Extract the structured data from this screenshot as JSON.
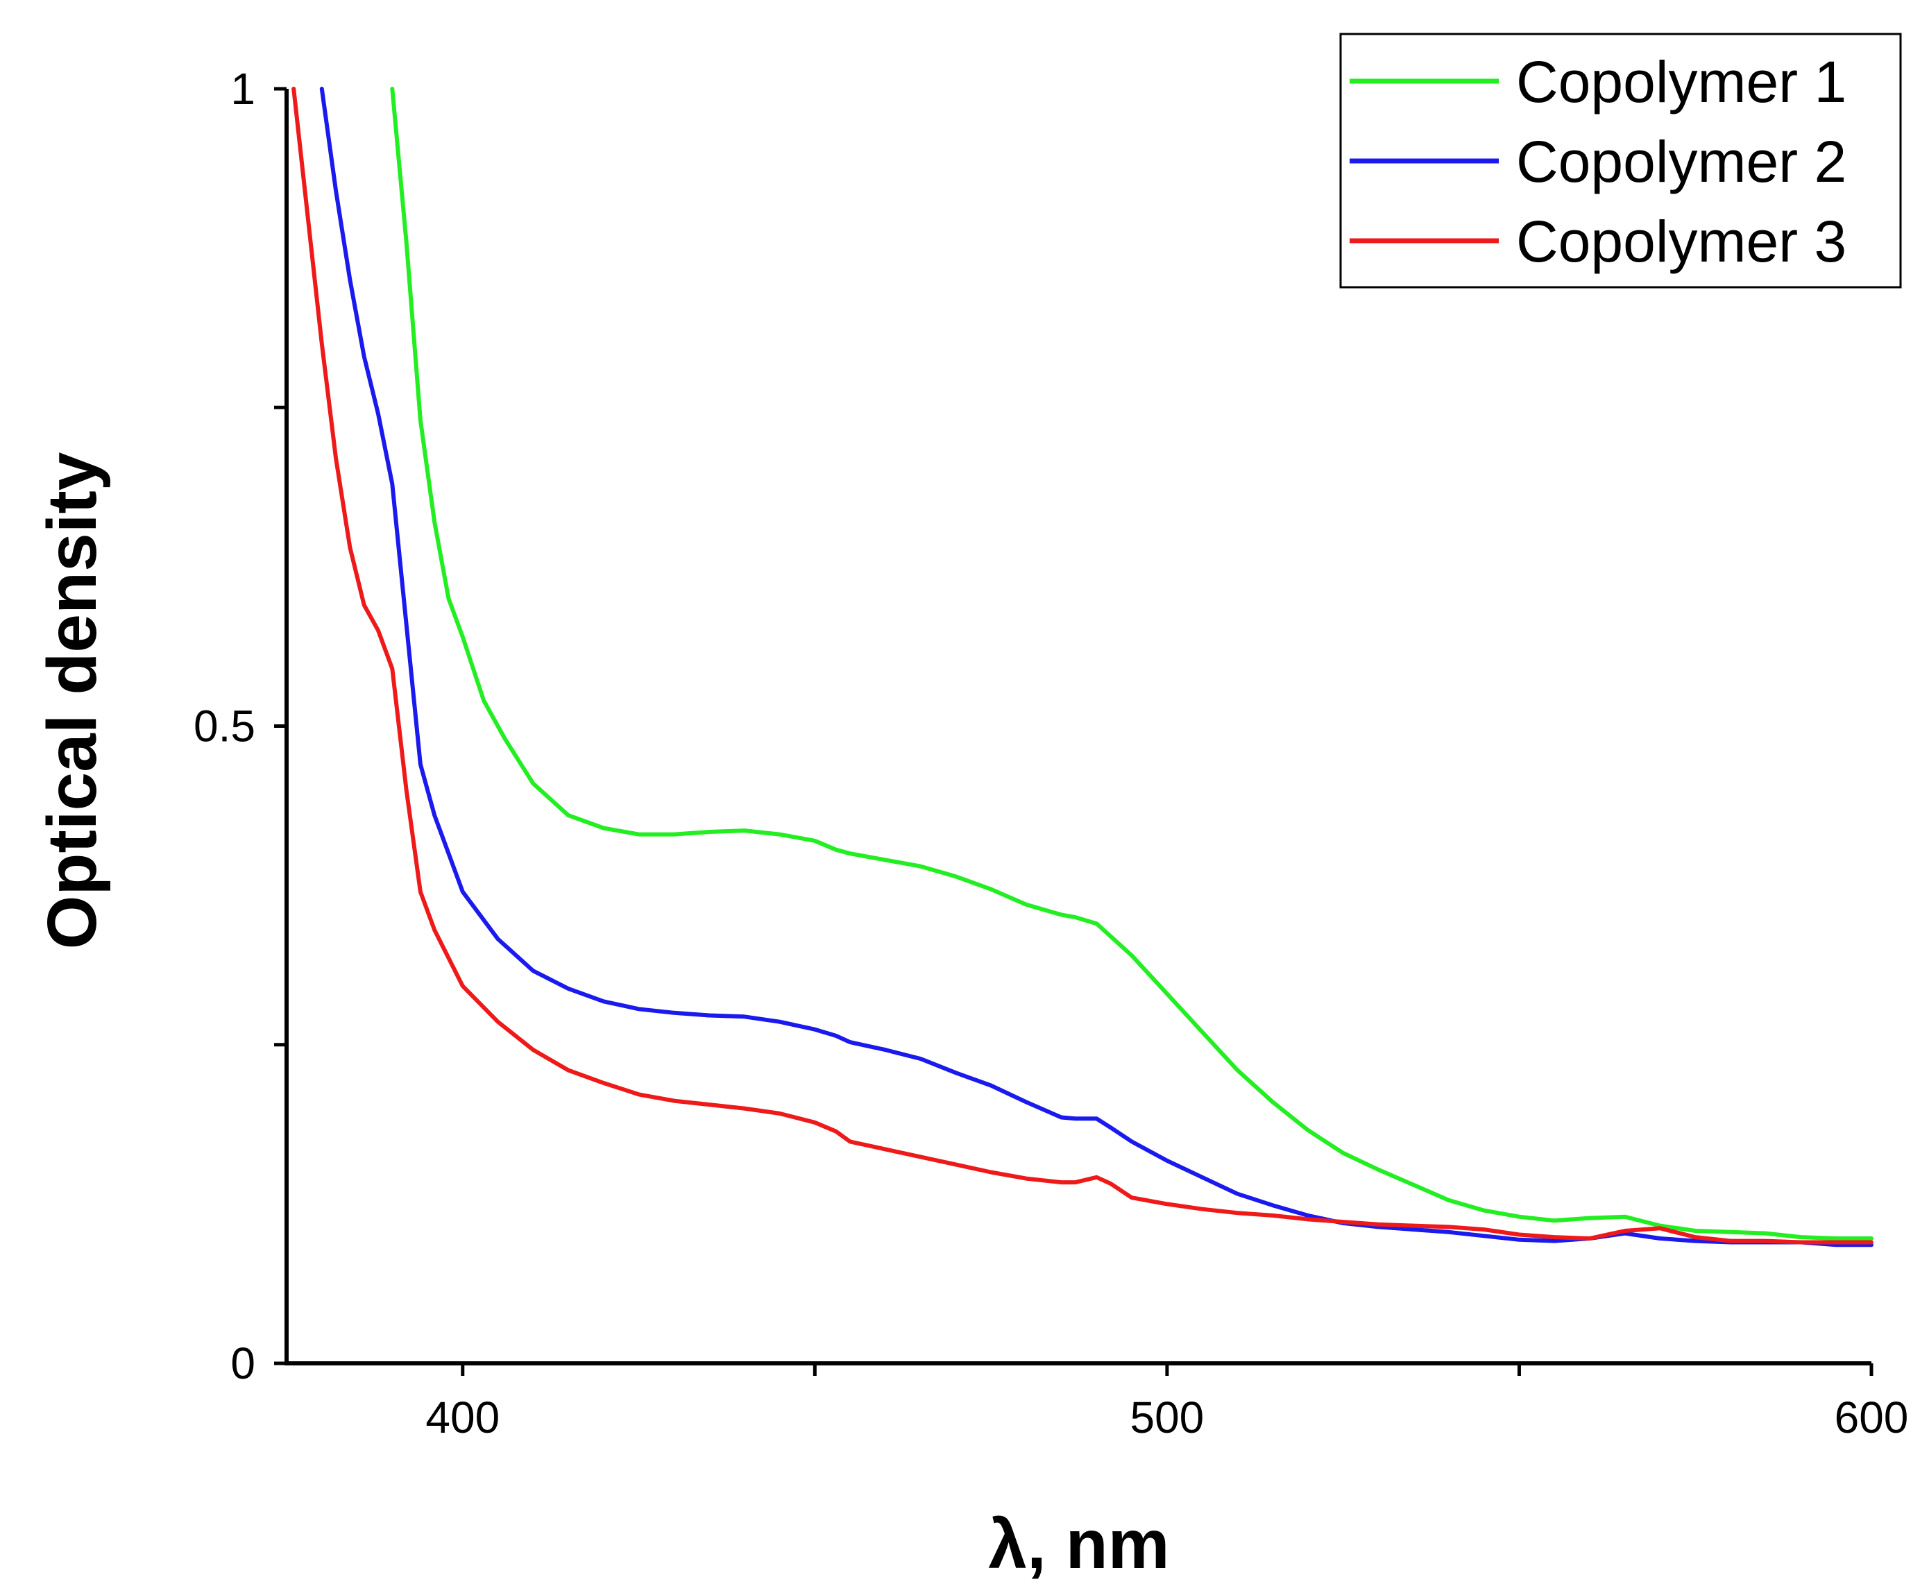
{
  "chart_data": {
    "type": "line",
    "title": "",
    "xlabel": "λ, nm",
    "ylabel": "Optical density",
    "xlim": [
      375,
      600
    ],
    "ylim": [
      0,
      1
    ],
    "x_ticks": [
      {
        "value": 400,
        "label": "400"
      },
      {
        "value": 450,
        "label": ""
      },
      {
        "value": 500,
        "label": "500"
      },
      {
        "value": 550,
        "label": ""
      },
      {
        "value": 600,
        "label": "600"
      }
    ],
    "y_ticks": [
      {
        "value": 0,
        "label": "0"
      },
      {
        "value": 0.25,
        "label": ""
      },
      {
        "value": 0.5,
        "label": "0.5"
      },
      {
        "value": 0.75,
        "label": ""
      },
      {
        "value": 1,
        "label": "1"
      }
    ],
    "grid": false,
    "legend_position": "top-right",
    "series": [
      {
        "name": "Copolymer 1",
        "color": "#22ee22",
        "x": [
          390,
          392,
          394,
          396,
          398,
          400,
          403,
          406,
          410,
          415,
          420,
          425,
          430,
          435,
          440,
          445,
          450,
          453,
          455,
          460,
          465,
          470,
          475,
          480,
          485,
          487,
          490,
          492,
          495,
          500,
          505,
          510,
          515,
          520,
          525,
          530,
          535,
          540,
          545,
          550,
          555,
          560,
          565,
          570,
          575,
          580,
          585,
          590,
          595,
          600
        ],
        "values": [
          1.0,
          0.88,
          0.74,
          0.66,
          0.6,
          0.57,
          0.52,
          0.49,
          0.455,
          0.43,
          0.42,
          0.415,
          0.415,
          0.417,
          0.418,
          0.415,
          0.41,
          0.403,
          0.4,
          0.395,
          0.39,
          0.382,
          0.372,
          0.36,
          0.352,
          0.35,
          0.345,
          0.335,
          0.32,
          0.29,
          0.26,
          0.23,
          0.205,
          0.183,
          0.165,
          0.152,
          0.14,
          0.128,
          0.12,
          0.115,
          0.112,
          0.114,
          0.115,
          0.108,
          0.104,
          0.103,
          0.102,
          0.099,
          0.098,
          0.098
        ]
      },
      {
        "name": "Copolymer 2",
        "color": "#1a1aee",
        "x": [
          380,
          382,
          384,
          386,
          388,
          390,
          392,
          394,
          396,
          400,
          405,
          410,
          415,
          420,
          425,
          430,
          435,
          440,
          445,
          450,
          453,
          455,
          460,
          465,
          470,
          475,
          480,
          485,
          487,
          490,
          492,
          495,
          500,
          505,
          510,
          515,
          520,
          525,
          530,
          535,
          540,
          545,
          550,
          555,
          560,
          565,
          570,
          575,
          580,
          585,
          590,
          595,
          600
        ],
        "values": [
          1.0,
          0.92,
          0.85,
          0.79,
          0.745,
          0.69,
          0.58,
          0.47,
          0.43,
          0.37,
          0.333,
          0.308,
          0.294,
          0.284,
          0.278,
          0.275,
          0.273,
          0.272,
          0.268,
          0.262,
          0.257,
          0.252,
          0.246,
          0.239,
          0.228,
          0.218,
          0.205,
          0.193,
          0.192,
          0.192,
          0.185,
          0.174,
          0.159,
          0.146,
          0.133,
          0.124,
          0.116,
          0.11,
          0.107,
          0.105,
          0.103,
          0.1,
          0.097,
          0.096,
          0.098,
          0.102,
          0.098,
          0.096,
          0.095,
          0.095,
          0.095,
          0.093,
          0.093
        ]
      },
      {
        "name": "Copolymer 3",
        "color": "#ee1a1a",
        "x": [
          376,
          378,
          380,
          382,
          384,
          386,
          388,
          390,
          392,
          394,
          396,
          400,
          405,
          410,
          415,
          420,
          425,
          430,
          435,
          440,
          445,
          450,
          453,
          455,
          460,
          465,
          470,
          475,
          480,
          485,
          487,
          490,
          492,
          495,
          500,
          505,
          510,
          515,
          520,
          525,
          530,
          535,
          540,
          545,
          550,
          555,
          560,
          565,
          570,
          575,
          580,
          585,
          590,
          595,
          600
        ],
        "values": [
          1.0,
          0.9,
          0.8,
          0.71,
          0.64,
          0.595,
          0.575,
          0.545,
          0.45,
          0.37,
          0.34,
          0.296,
          0.268,
          0.246,
          0.23,
          0.22,
          0.211,
          0.206,
          0.203,
          0.2,
          0.196,
          0.189,
          0.182,
          0.174,
          0.168,
          0.162,
          0.156,
          0.15,
          0.145,
          0.142,
          0.142,
          0.146,
          0.141,
          0.13,
          0.125,
          0.121,
          0.118,
          0.116,
          0.113,
          0.111,
          0.109,
          0.108,
          0.107,
          0.105,
          0.101,
          0.099,
          0.098,
          0.104,
          0.106,
          0.099,
          0.096,
          0.096,
          0.095,
          0.095,
          0.095
        ]
      }
    ]
  }
}
